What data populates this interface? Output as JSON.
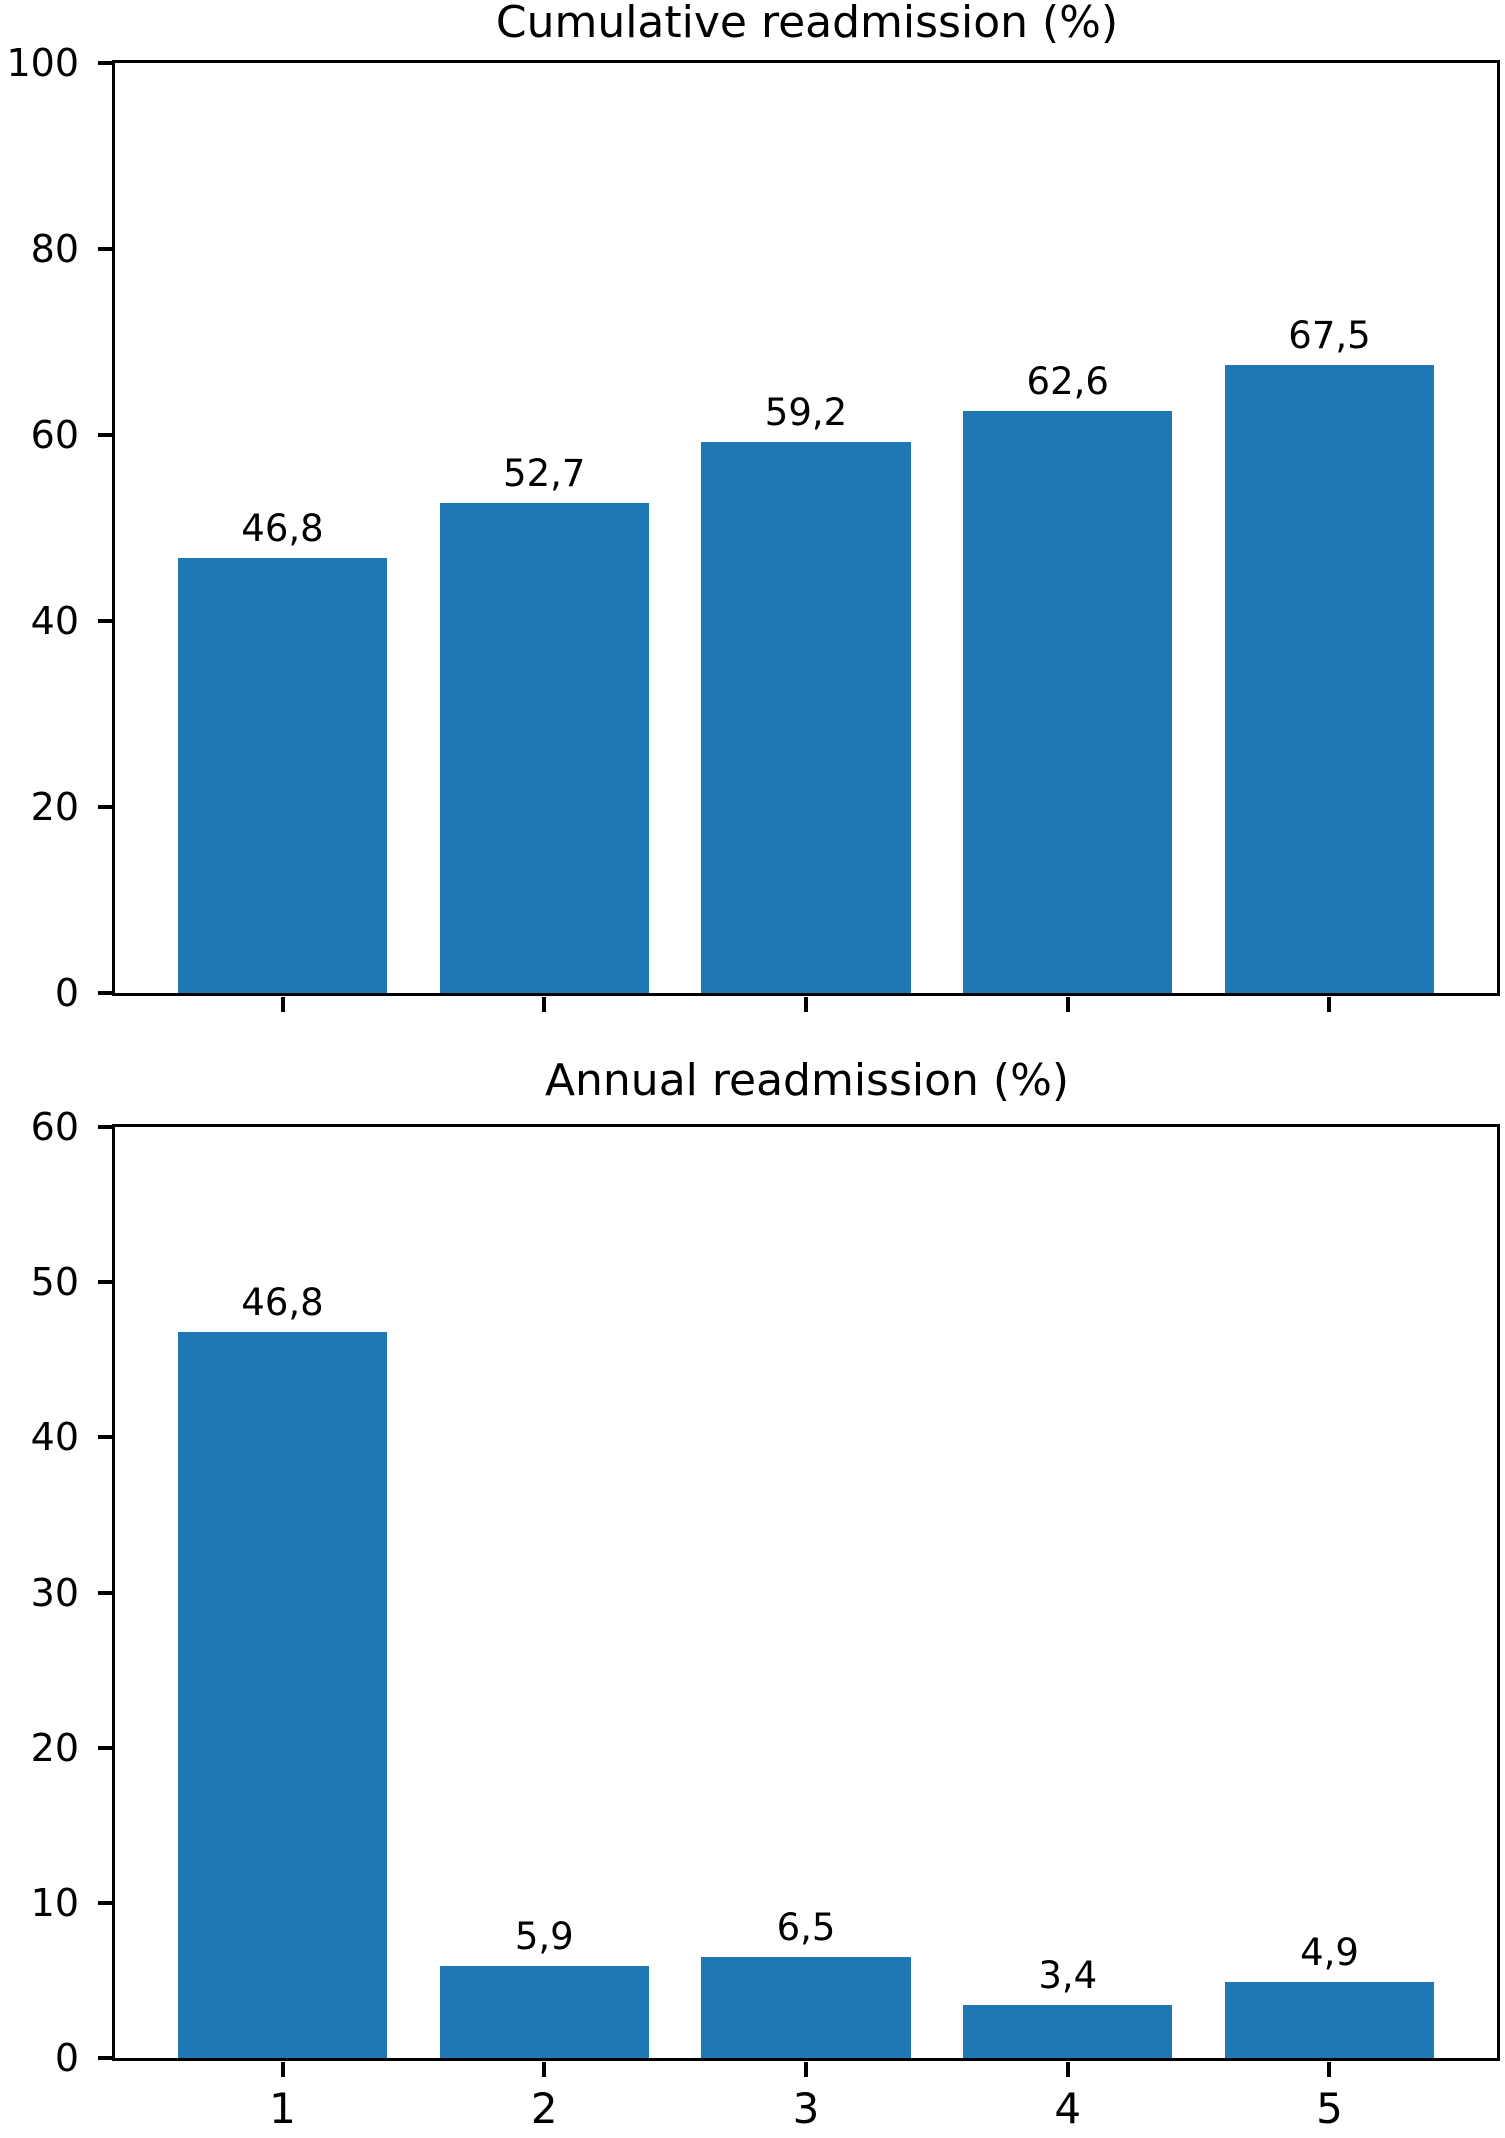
{
  "page": {
    "background": "#ffffff"
  },
  "chart_data": [
    {
      "type": "bar",
      "title": "Cumulative readmission (%)",
      "categories": [
        "1",
        "2",
        "3",
        "4",
        "5"
      ],
      "values": [
        46.8,
        52.7,
        59.2,
        62.6,
        67.5
      ],
      "value_labels": [
        "46,8",
        "52,7",
        "59,2",
        "62,6",
        "67,5"
      ],
      "xlabel": "",
      "ylabel": "",
      "ylim": [
        0,
        100
      ],
      "yticks": [
        0,
        20,
        40,
        60,
        80,
        100
      ],
      "show_x_tick_labels": false,
      "bar_width_fraction": 0.8,
      "bar_color": "#1f77b4",
      "axis_color": "#000000",
      "grid": false,
      "legend": null
    },
    {
      "type": "bar",
      "title": "Annual readmission (%)",
      "categories": [
        "1",
        "2",
        "3",
        "4",
        "5"
      ],
      "values": [
        46.8,
        5.9,
        6.5,
        3.4,
        4.9
      ],
      "value_labels": [
        "46,8",
        "5,9",
        "6,5",
        "3,4",
        "4,9"
      ],
      "xlabel": "",
      "ylabel": "",
      "ylim": [
        0,
        60
      ],
      "yticks": [
        0,
        10,
        20,
        30,
        40,
        50,
        60
      ],
      "show_x_tick_labels": true,
      "bar_width_fraction": 0.8,
      "bar_color": "#1f77b4",
      "axis_color": "#000000",
      "grid": false,
      "legend": null
    }
  ]
}
